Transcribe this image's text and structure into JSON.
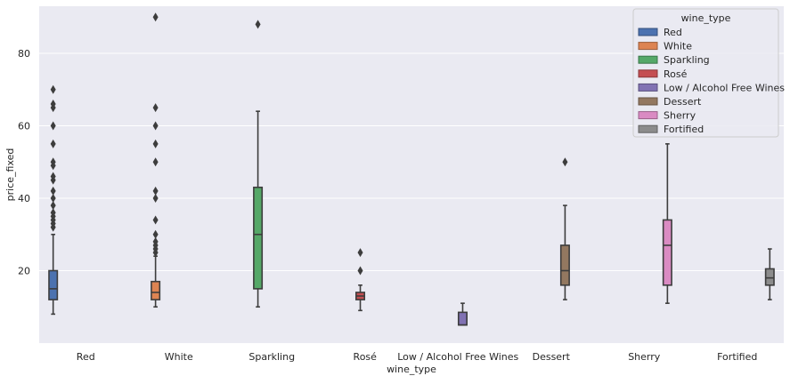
{
  "chart_data": {
    "type": "boxplot",
    "xlabel": "wine_type",
    "ylabel": "price_fixed",
    "ylim": [
      0,
      93
    ],
    "y_ticks": [
      20,
      40,
      60,
      80
    ],
    "grid": true,
    "legend": {
      "title": "wine_type",
      "placement": "top-right"
    },
    "categories": [
      "Red",
      "White",
      "Sparkling",
      "Rosé",
      "Low / Alcohol Free Wines",
      "Dessert",
      "Sherry",
      "Fortified"
    ],
    "series": [
      {
        "name": "Red",
        "color": "#4c72b0",
        "category": "Red",
        "whisker_low": 8,
        "q1": 12,
        "median": 15,
        "q3": 20,
        "whisker_high": 30,
        "outliers": [
          32,
          33,
          34,
          35,
          36,
          38,
          40,
          42,
          45,
          46,
          49,
          50,
          55,
          60,
          65,
          66,
          70
        ]
      },
      {
        "name": "White",
        "color": "#dd8452",
        "category": "White",
        "whisker_low": 10,
        "q1": 12,
        "median": 14,
        "q3": 17,
        "whisker_high": 24,
        "outliers": [
          25,
          26,
          27,
          28,
          30,
          34,
          40,
          42,
          50,
          55,
          60,
          65,
          90
        ]
      },
      {
        "name": "Sparkling",
        "color": "#55a868",
        "category": "Sparkling",
        "whisker_low": 10,
        "q1": 15,
        "median": 30,
        "q3": 43,
        "whisker_high": 64,
        "outliers": [
          88
        ]
      },
      {
        "name": "Rosé",
        "color": "#c44e52",
        "category": "Rosé",
        "whisker_low": 9,
        "q1": 12,
        "median": 13,
        "q3": 14,
        "whisker_high": 16,
        "outliers": [
          20,
          25
        ]
      },
      {
        "name": "Low / Alcohol Free Wines",
        "color": "#8172b3",
        "category": "Low / Alcohol Free Wines",
        "whisker_low": 5,
        "q1": 5,
        "median": 5,
        "q3": 8.5,
        "whisker_high": 11,
        "outliers": []
      },
      {
        "name": "Dessert",
        "color": "#937860",
        "category": "Dessert",
        "whisker_low": 12,
        "q1": 16,
        "median": 20,
        "q3": 27,
        "whisker_high": 38,
        "outliers": [
          50
        ]
      },
      {
        "name": "Sherry",
        "color": "#da8bc3",
        "category": "Sherry",
        "whisker_low": 11,
        "q1": 16,
        "median": 27,
        "q3": 34,
        "whisker_high": 55,
        "outliers": []
      },
      {
        "name": "Fortified",
        "color": "#8c8c8c",
        "category": "Fortified",
        "whisker_low": 12,
        "q1": 16,
        "median": 18,
        "q3": 20.5,
        "whisker_high": 26,
        "outliers": []
      }
    ]
  }
}
